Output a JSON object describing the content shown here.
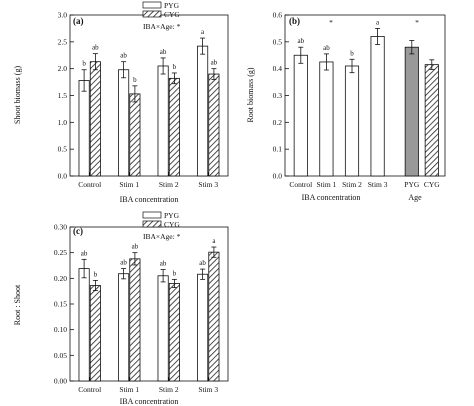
{
  "colors": {
    "pyg_fill": "#ffffff",
    "cyg_fill": "hatched",
    "age_pyg_fill": "#999999",
    "stroke": "#111111"
  },
  "chart_data": [
    {
      "type": "bar",
      "panel": "(a)",
      "title": "",
      "xlabel": "IBA concentration",
      "ylabel": "Shoot biomass (g)",
      "categories": [
        "Control",
        "Stim 1",
        "Stim 2",
        "Stim 3"
      ],
      "ylim": [
        0.0,
        3.0
      ],
      "yticks": [
        "0.0",
        "0.5",
        "1.0",
        "1.5",
        "2.0",
        "2.5",
        "3.0"
      ],
      "legend": {
        "placement": "top-center",
        "entries": [
          "PYG",
          "CYG"
        ]
      },
      "annotation": "IBA×Age: *",
      "series": [
        {
          "name": "PYG",
          "values": [
            1.78,
            1.98,
            2.05,
            2.42
          ],
          "errors": [
            0.2,
            0.15,
            0.15,
            0.15
          ],
          "letters": [
            "b",
            "ab",
            "ab",
            "a"
          ]
        },
        {
          "name": "CYG",
          "values": [
            2.13,
            1.53,
            1.82,
            1.9
          ],
          "errors": [
            0.15,
            0.15,
            0.1,
            0.1
          ],
          "letters": [
            "ab",
            "b",
            "b",
            "ab"
          ]
        }
      ]
    },
    {
      "type": "bar",
      "panel": "(b)",
      "title": "",
      "xlabel": "IBA concentration",
      "xlabel2": "Age",
      "ylabel": "Root biomass (g)",
      "categories": [
        "Control",
        "Stim 1",
        "Stim 2",
        "Stim 3"
      ],
      "ylim": [
        0.0,
        0.6
      ],
      "yticks": [
        "0.0",
        "0.1",
        "0.2",
        "0.3",
        "0.4",
        "0.5",
        "0.6"
      ],
      "star_iba": "*",
      "star_age": "*",
      "series": [
        {
          "name": "IBA",
          "values": [
            0.45,
            0.425,
            0.41,
            0.52
          ],
          "errors": [
            0.03,
            0.03,
            0.025,
            0.03
          ],
          "letters": [
            "ab",
            "ab",
            "b",
            "a"
          ]
        }
      ],
      "age_categories": [
        "PYG",
        "CYG"
      ],
      "age_values": [
        0.48,
        0.415
      ],
      "age_errors": [
        0.025,
        0.018
      ]
    },
    {
      "type": "bar",
      "panel": "(c)",
      "title": "",
      "xlabel": "IBA concentration",
      "ylabel": "Root : Shoot",
      "categories": [
        "Control",
        "Stim 1",
        "Stim 2",
        "Stim 3"
      ],
      "ylim": [
        0.0,
        0.3
      ],
      "yticks": [
        "0.00",
        "0.05",
        "0.10",
        "0.15",
        "0.20",
        "0.25",
        "0.30"
      ],
      "legend": {
        "placement": "top-center",
        "entries": [
          "PYG",
          "CYG"
        ]
      },
      "annotation": "IBA×Age: *",
      "series": [
        {
          "name": "PYG",
          "values": [
            0.219,
            0.209,
            0.205,
            0.208
          ],
          "errors": [
            0.018,
            0.01,
            0.012,
            0.01
          ],
          "letters": [
            "ab",
            "ab",
            "ab",
            "ab"
          ]
        },
        {
          "name": "CYG",
          "values": [
            0.186,
            0.238,
            0.19,
            0.251
          ],
          "errors": [
            0.01,
            0.012,
            0.008,
            0.01
          ],
          "letters": [
            "b",
            "ab",
            "b",
            "a"
          ]
        }
      ]
    }
  ]
}
